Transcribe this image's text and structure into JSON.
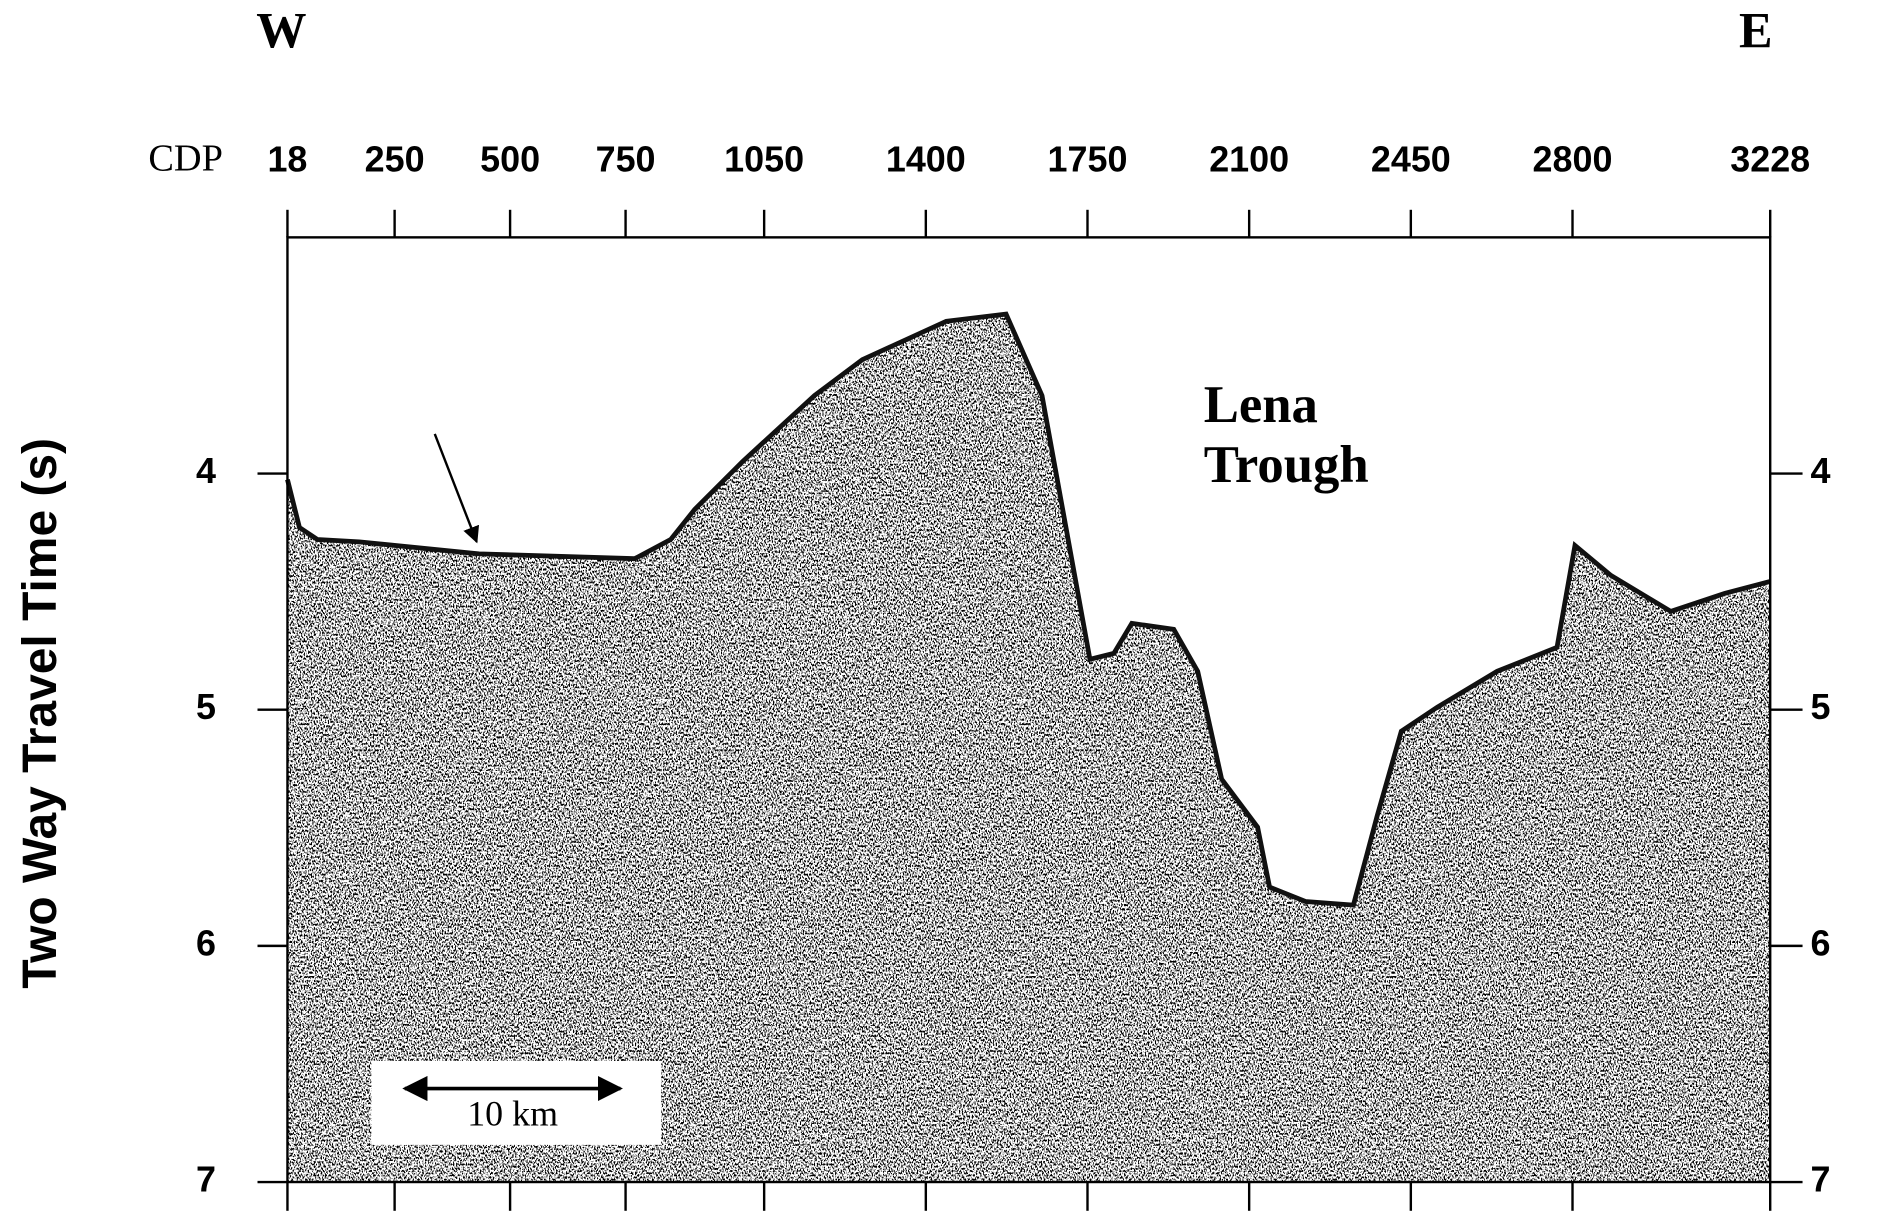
{
  "chart_data": {
    "type": "seismic-section",
    "direction_left": "W",
    "direction_right": "E",
    "xlabel": "CDP",
    "xlim": [
      18,
      3228
    ],
    "xticks": [
      18,
      250,
      500,
      750,
      1050,
      1400,
      1750,
      2100,
      2450,
      2800,
      3228
    ],
    "ylabel": "Two Way Travel Time (s)",
    "ylim": [
      3,
      7
    ],
    "yticks": [
      4,
      5,
      6,
      7
    ],
    "annotation": [
      "Lena",
      "Trough"
    ],
    "scale_bar": "10 km"
  }
}
